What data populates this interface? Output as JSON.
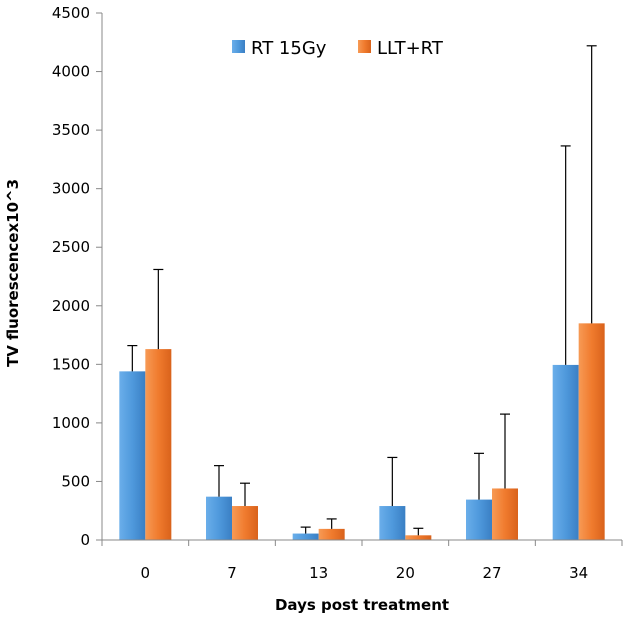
{
  "chart_data": {
    "type": "bar",
    "title": "",
    "xlabel": "Days post treatment",
    "ylabel": "TV fluorescencex10^3",
    "categories": [
      "0",
      "7",
      "13",
      "20",
      "27",
      "34"
    ],
    "ylim": [
      0,
      4500
    ],
    "yticks": [
      0,
      500,
      1000,
      1500,
      2000,
      2500,
      3000,
      3500,
      4000,
      4500
    ],
    "grid": false,
    "legend_position": "top-center",
    "series": [
      {
        "name": "RT 15Gy",
        "color": "#4e9ae0",
        "values": [
          1440,
          370,
          55,
          290,
          345,
          1495
        ],
        "error_upper": [
          1660,
          635,
          110,
          705,
          740,
          3365
        ]
      },
      {
        "name": "LLT+RT",
        "color": "#f07b2e",
        "values": [
          1630,
          290,
          95,
          40,
          440,
          1850
        ],
        "error_upper": [
          2310,
          485,
          180,
          100,
          1075,
          4220
        ]
      }
    ]
  }
}
